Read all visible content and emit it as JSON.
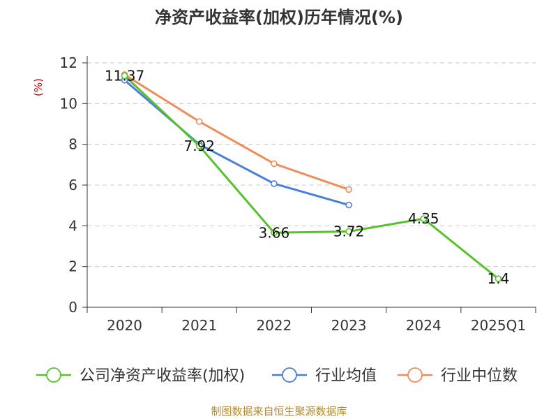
{
  "chart_data": {
    "type": "line",
    "title": "净资产收益率(加权)历年情况(%)",
    "ylabel": "(%)",
    "categories": [
      "2020",
      "2021",
      "2022",
      "2023",
      "2024",
      "2025Q1"
    ],
    "ylim": [
      0,
      12
    ],
    "yticks": [
      0,
      2,
      4,
      6,
      8,
      10,
      12
    ],
    "grid": true,
    "legend_position": "bottom",
    "series": [
      {
        "name": "公司净资产收益率(加权)",
        "color": "#58c12b",
        "values": [
          11.37,
          7.92,
          3.66,
          3.72,
          4.35,
          1.4
        ],
        "labels": [
          "11.37",
          "7.92",
          "3.66",
          "3.72",
          "4.35",
          "1.4"
        ]
      },
      {
        "name": "行业均值",
        "color": "#4a7fd8",
        "values": [
          11.15,
          8.0,
          6.07,
          5.02,
          null,
          null
        ]
      },
      {
        "name": "行业中位数",
        "color": "#f08c5a",
        "values": [
          11.42,
          9.12,
          7.05,
          5.78,
          null,
          null
        ]
      }
    ]
  },
  "source": "制图数据来自恒生聚源数据库"
}
